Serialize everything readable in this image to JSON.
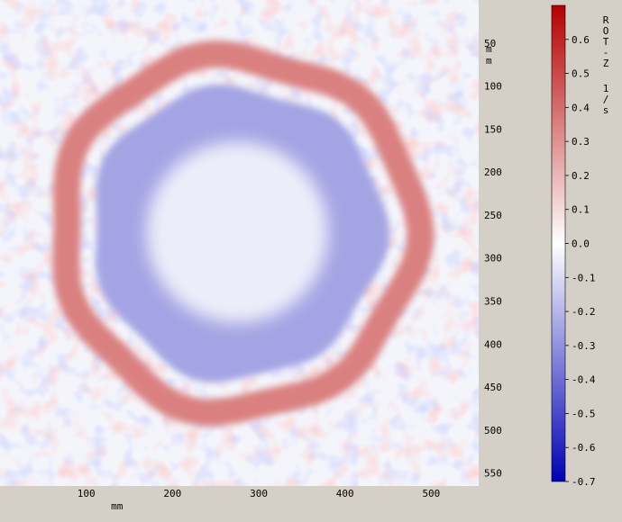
{
  "chart_data": {
    "type": "heatmap",
    "field_name": "ROT-Z",
    "field_unit": "1/s",
    "x_unit": "mm",
    "y_unit": "mm",
    "x_range": [
      0,
      555
    ],
    "y_range": [
      0,
      565
    ],
    "x_ticks": [
      100,
      200,
      300,
      400,
      500
    ],
    "y_ticks": [
      50,
      100,
      150,
      200,
      250,
      300,
      350,
      400,
      450,
      500,
      550
    ],
    "colorbar": {
      "range": [
        -0.7,
        0.7
      ],
      "ticks": [
        "0.6",
        "0.5",
        "0.4",
        "0.3",
        "0.2",
        "0.1",
        "0.0",
        "-0.1",
        "-0.2",
        "-0.3",
        "-0.4",
        "-0.5",
        "-0.6",
        "-0.7"
      ],
      "tick_values": [
        0.6,
        0.5,
        0.4,
        0.3,
        0.2,
        0.1,
        0.0,
        -0.1,
        -0.2,
        -0.3,
        -0.4,
        -0.5,
        -0.6,
        -0.7
      ],
      "colors": {
        "negative": "#0000b4",
        "zero": "#ffffff",
        "positive": "#b40000"
      }
    },
    "features": {
      "core_center_mm": [
        275,
        270
      ],
      "core_radius_mm": 105,
      "core_value": -0.05,
      "inner_ring_radius_mm": 170,
      "inner_ring_value": -0.25,
      "outer_ring_radius_mm": 205,
      "outer_ring_value": 0.35
    }
  }
}
